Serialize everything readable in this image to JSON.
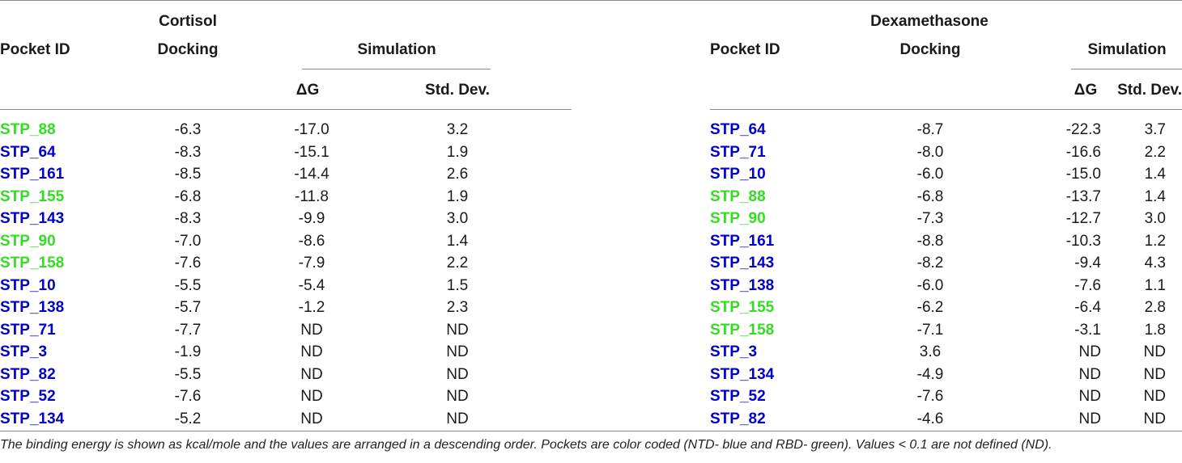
{
  "colors": {
    "ntd": "#0000cc",
    "rbd": "#33dd22",
    "rule": "#8a8a8a"
  },
  "left": {
    "compound": "Cortisol",
    "headers": {
      "pocket_id": "Pocket ID",
      "docking": "Docking",
      "simulation": "Simulation",
      "dg": "ΔG",
      "std": "Std. Dev."
    },
    "rows": [
      {
        "id": "STP_88",
        "domain": "rbd",
        "docking": "-6.3",
        "dg": "-17.0",
        "std": "3.2"
      },
      {
        "id": "STP_64",
        "domain": "ntd",
        "docking": "-8.3",
        "dg": "-15.1",
        "std": "1.9"
      },
      {
        "id": "STP_161",
        "domain": "ntd",
        "docking": "-8.5",
        "dg": "-14.4",
        "std": "2.6"
      },
      {
        "id": "STP_155",
        "domain": "rbd",
        "docking": "-6.8",
        "dg": "-11.8",
        "std": "1.9"
      },
      {
        "id": "STP_143",
        "domain": "ntd",
        "docking": "-8.3",
        "dg": "-9.9",
        "std": "3.0"
      },
      {
        "id": "STP_90",
        "domain": "rbd",
        "docking": "-7.0",
        "dg": "-8.6",
        "std": "1.4"
      },
      {
        "id": "STP_158",
        "domain": "rbd",
        "docking": "-7.6",
        "dg": "-7.9",
        "std": "2.2"
      },
      {
        "id": "STP_10",
        "domain": "ntd",
        "docking": "-5.5",
        "dg": "-5.4",
        "std": "1.5"
      },
      {
        "id": "STP_138",
        "domain": "ntd",
        "docking": "-5.7",
        "dg": "-1.2",
        "std": "2.3"
      },
      {
        "id": "STP_71",
        "domain": "ntd",
        "docking": "-7.7",
        "dg": "ND",
        "std": "ND"
      },
      {
        "id": "STP_3",
        "domain": "ntd",
        "docking": "-1.9",
        "dg": "ND",
        "std": "ND"
      },
      {
        "id": "STP_82",
        "domain": "ntd",
        "docking": "-5.5",
        "dg": "ND",
        "std": "ND"
      },
      {
        "id": "STP_52",
        "domain": "ntd",
        "docking": "-7.6",
        "dg": "ND",
        "std": "ND"
      },
      {
        "id": "STP_134",
        "domain": "ntd",
        "docking": "-5.2",
        "dg": "ND",
        "std": "ND"
      }
    ]
  },
  "right": {
    "compound": "Dexamethasone",
    "headers": {
      "pocket_id": "Pocket ID",
      "docking": "Docking",
      "simulation": "Simulation",
      "dg": "ΔG",
      "std": "Std. Dev."
    },
    "rows": [
      {
        "id": "STP_64",
        "domain": "ntd",
        "docking": "-8.7",
        "dg": "-22.3",
        "std": "3.7"
      },
      {
        "id": "STP_71",
        "domain": "ntd",
        "docking": "-8.0",
        "dg": "-16.6",
        "std": "2.2"
      },
      {
        "id": "STP_10",
        "domain": "ntd",
        "docking": "-6.0",
        "dg": "-15.0",
        "std": "1.4"
      },
      {
        "id": "STP_88",
        "domain": "rbd",
        "docking": "-6.8",
        "dg": "-13.7",
        "std": "1.4"
      },
      {
        "id": "STP_90",
        "domain": "rbd",
        "docking": "-7.3",
        "dg": "-12.7",
        "std": "3.0"
      },
      {
        "id": "STP_161",
        "domain": "ntd",
        "docking": "-8.8",
        "dg": "-10.3",
        "std": "1.2"
      },
      {
        "id": "STP_143",
        "domain": "ntd",
        "docking": "-8.2",
        "dg": "-9.4",
        "std": "4.3"
      },
      {
        "id": "STP_138",
        "domain": "ntd",
        "docking": "-6.0",
        "dg": "-7.6",
        "std": "1.1"
      },
      {
        "id": "STP_155",
        "domain": "rbd",
        "docking": "-6.2",
        "dg": "-6.4",
        "std": "2.8"
      },
      {
        "id": "STP_158",
        "domain": "rbd",
        "docking": "-7.1",
        "dg": "-3.1",
        "std": "1.8"
      },
      {
        "id": "STP_3",
        "domain": "ntd",
        "docking": "3.6",
        "dg": "ND",
        "std": "ND"
      },
      {
        "id": "STP_134",
        "domain": "ntd",
        "docking": "-4.9",
        "dg": "ND",
        "std": "ND"
      },
      {
        "id": "STP_52",
        "domain": "ntd",
        "docking": "-7.6",
        "dg": "ND",
        "std": "ND"
      },
      {
        "id": "STP_82",
        "domain": "ntd",
        "docking": "-4.6",
        "dg": "ND",
        "std": "ND"
      }
    ]
  },
  "caption": "The binding energy is shown as kcal/mole and the values are arranged in a descending order. Pockets are color coded (NTD- blue and RBD- green). Values < 0.1 are not defined (ND)."
}
